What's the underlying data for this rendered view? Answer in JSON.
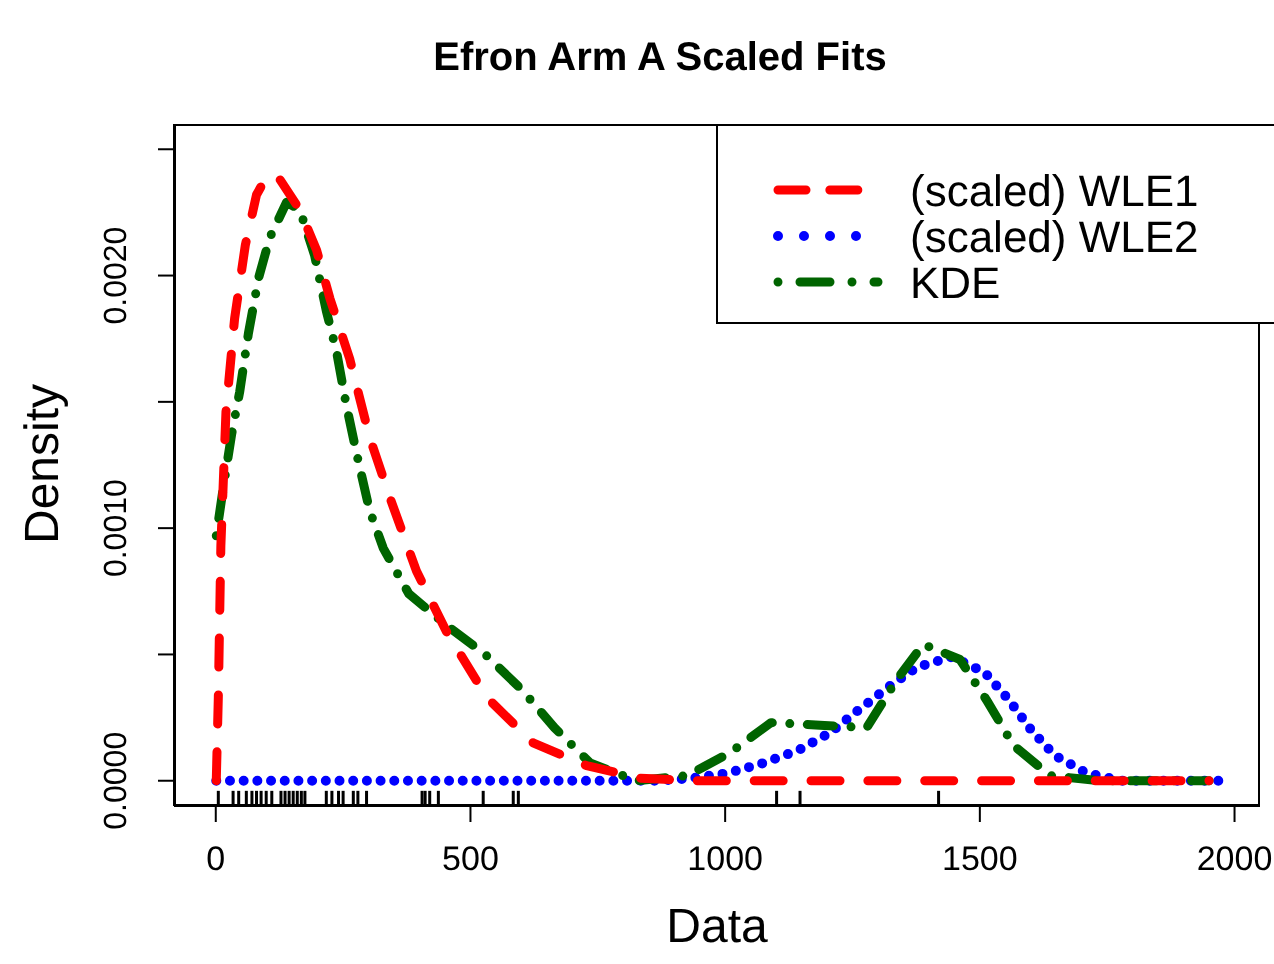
{
  "chart_data": {
    "type": "line",
    "title": "Efron Arm A Scaled Fits",
    "xlabel": "Data",
    "ylabel": "Density",
    "xlim": [
      -82,
      2050
    ],
    "ylim": [
      -0.0001,
      0.0026
    ],
    "xticks": [
      0,
      500,
      1000,
      1500,
      2000
    ],
    "yticks": [
      {
        "value": 0,
        "label": "0.0000"
      },
      {
        "value": 0.0005,
        "label": null
      },
      {
        "value": 0.001,
        "label": "0.0010"
      },
      {
        "value": 0.0015,
        "label": null
      },
      {
        "value": 0.002,
        "label": "0.0020"
      },
      {
        "value": 0.0025,
        "label": null
      }
    ],
    "legend": "top right",
    "grid": false,
    "series": [
      {
        "name": "(scaled) WLE1",
        "line_style": "dashed",
        "color": "#ff0000",
        "x": [
          1,
          5,
          10,
          20,
          37,
          58,
          80,
          102,
          126,
          165,
          198,
          224,
          263,
          302,
          342,
          394,
          453,
          532,
          623,
          728,
          833,
          937,
          1200,
          1500,
          1950
        ],
        "values": [
          0,
          0.00033,
          0.00093,
          0.00146,
          0.00183,
          0.00212,
          0.00232,
          0.0024,
          0.00238,
          0.00226,
          0.0021,
          0.00191,
          0.00167,
          0.00136,
          0.00112,
          0.00083,
          0.00059,
          0.00033,
          0.00015,
          6e-05,
          1e-05,
          0,
          0,
          0,
          0
        ]
      },
      {
        "name": "(scaled) WLE2",
        "line_style": "dotted",
        "color": "#0000ff",
        "x": [
          1,
          300,
          600,
          790,
          865,
          935,
          1005,
          1075,
          1143,
          1206,
          1262,
          1320,
          1377,
          1445,
          1509,
          1557,
          1601,
          1647,
          1710,
          1779,
          1851,
          1995
        ],
        "values": [
          0,
          0,
          0,
          0,
          0,
          1e-05,
          3e-05,
          7e-05,
          0.00012,
          0.00019,
          0.00028,
          0.00037,
          0.00045,
          0.00049,
          0.00043,
          0.00032,
          0.0002,
          0.0001,
          3e-05,
          0,
          0,
          0
        ]
      },
      {
        "name": "KDE",
        "line_style": "dashdot",
        "color": "#006400",
        "x": [
          1,
          14,
          31,
          47,
          64,
          84,
          106,
          139,
          165,
          194,
          217,
          237,
          256,
          276,
          302,
          329,
          379,
          450,
          529,
          601,
          665,
          735,
          826,
          925,
          1009,
          1090,
          1186,
          1278,
          1337,
          1389,
          1461,
          1513,
          1566,
          1638,
          1736,
          1950
        ],
        "values": [
          0.00097,
          0.00115,
          0.00137,
          0.00154,
          0.00177,
          0.00199,
          0.00215,
          0.00229,
          0.00226,
          0.00208,
          0.00186,
          0.0017,
          0.00149,
          0.0013,
          0.00107,
          0.00092,
          0.00074,
          0.00062,
          0.0005,
          0.00036,
          0.00021,
          7e-05,
          0,
          2e-05,
          0.00011,
          0.00023,
          0.00022,
          0.00021,
          0.0004,
          0.00054,
          0.00048,
          0.00032,
          0.00014,
          2e-05,
          0,
          0
        ]
      },
      {
        "type": "bar",
        "color": "#000000",
        "base": [
          -0.0001,
          -0.0001,
          -0.0001,
          -0.0001,
          -0.0001,
          -0.0001,
          -0.0001,
          -0.0001,
          -0.0001,
          -0.0001,
          -0.0001,
          -0.0001,
          -0.0001,
          -0.0001,
          -0.0001,
          -0.0001,
          -0.0001,
          -0.0001,
          -0.0001,
          -0.0001,
          -0.0001,
          -0.0001,
          -0.0001,
          -0.0001,
          -0.0001,
          -0.0001,
          -0.0001,
          -0.0001,
          -0.0001,
          -0.0001,
          -0.0001,
          -0.0001,
          -0.0001
        ],
        "x": [
          5,
          34,
          45,
          60,
          71,
          80,
          89,
          99,
          110,
          128,
          136,
          144,
          152,
          160,
          168,
          175,
          217,
          228,
          241,
          250,
          270,
          279,
          296,
          405,
          411,
          420,
          437,
          525,
          584,
          594,
          1101,
          1147,
          1419
        ],
        "values": [
          6e-05,
          6e-05,
          6e-05,
          6e-05,
          6e-05,
          6e-05,
          6e-05,
          6e-05,
          6e-05,
          6e-05,
          6e-05,
          6e-05,
          6e-05,
          6e-05,
          6e-05,
          6e-05,
          6e-05,
          6e-05,
          6e-05,
          6e-05,
          6e-05,
          6e-05,
          6e-05,
          6e-05,
          6e-05,
          6e-05,
          6e-05,
          6e-05,
          6e-05,
          6e-05,
          6e-05,
          6e-05,
          6e-05
        ]
      }
    ]
  }
}
